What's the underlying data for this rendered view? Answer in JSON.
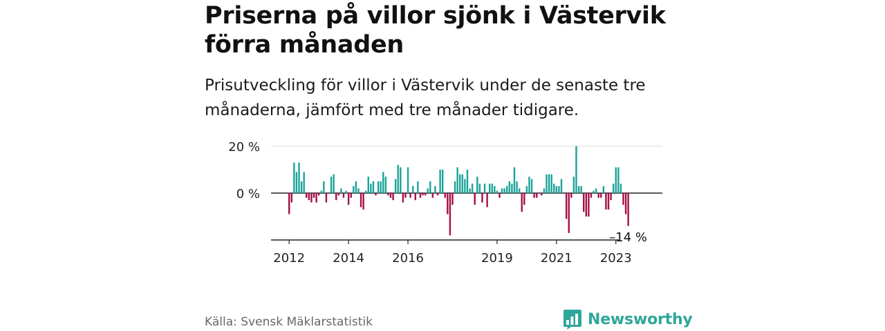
{
  "title": "Priserna på villor sjönk i Västervik förra månaden",
  "subtitle": "Prisutveckling för villor i Västervik under de senaste tre månaderna, jämfört med tre månader tidigare.",
  "source": "Källa: Svensk Mäklarstatistik",
  "brand": {
    "name": "Newsworthy",
    "icon": "newsworthy-logo-icon"
  },
  "colors": {
    "positive": "#1aa39a",
    "negative": "#a50f47",
    "grid": "#dddddd",
    "axis": "#222222",
    "brand": "#2fa69a"
  },
  "chart_data": {
    "type": "bar",
    "unit": "%",
    "x_start": "2012-01",
    "ylim": [
      -20,
      20
    ],
    "yticks": [
      {
        "value": 20,
        "label": "20 %"
      },
      {
        "value": 0,
        "label": "0 %"
      }
    ],
    "xticks": [
      {
        "index": 0,
        "label": "2012"
      },
      {
        "index": 24,
        "label": "2014"
      },
      {
        "index": 48,
        "label": "2016"
      },
      {
        "index": 84,
        "label": "2019"
      },
      {
        "index": 108,
        "label": "2021"
      },
      {
        "index": 132,
        "label": "2023"
      }
    ],
    "last_value_label": "–14 %",
    "values": [
      -9,
      -4,
      13,
      9,
      13,
      5,
      9,
      -2,
      -3,
      -4,
      -2,
      -4,
      -1,
      1,
      5,
      -4,
      0,
      7,
      8,
      -3,
      -1,
      2,
      -2,
      1,
      -5,
      -2,
      3,
      5,
      2,
      -6,
      -7,
      1,
      7,
      4,
      5,
      -1,
      5,
      5,
      9,
      7,
      -1,
      -2,
      -3,
      6,
      12,
      11,
      -4,
      -2,
      11,
      -2,
      3,
      -3,
      5,
      -2,
      -1,
      -1,
      2,
      5,
      -2,
      3,
      -1,
      10,
      10,
      -2,
      -9,
      -18,
      -5,
      5,
      11,
      8,
      8,
      6,
      10,
      2,
      4,
      -5,
      7,
      4,
      -4,
      4,
      -6,
      4,
      4,
      3,
      1,
      -2,
      2,
      2,
      3,
      5,
      4,
      11,
      5,
      2,
      -8,
      -5,
      3,
      7,
      6,
      -2,
      -2,
      0,
      -1,
      2,
      8,
      8,
      8,
      4,
      3,
      3,
      6,
      0,
      -11,
      -17,
      -2,
      7,
      20,
      3,
      3,
      -8,
      -10,
      -10,
      -2,
      1,
      2,
      -2,
      -2,
      3,
      -7,
      -7,
      -3,
      4,
      11,
      11,
      4,
      -5,
      -9,
      -14
    ]
  }
}
